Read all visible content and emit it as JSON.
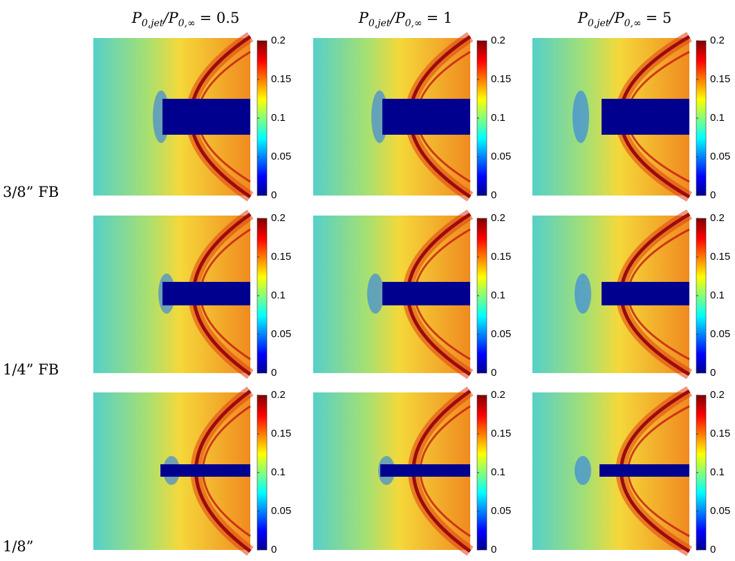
{
  "figure": {
    "columns": [
      {
        "p1": "P",
        "s1": "0,jet",
        "slash": "/",
        "p2": "P",
        "s2": "0,∞",
        "eq": "= 0.5"
      },
      {
        "p1": "P",
        "s1": "0,jet",
        "slash": "/",
        "p2": "P",
        "s2": "0,∞",
        "eq": "= 1"
      },
      {
        "p1": "P",
        "s1": "0,jet",
        "slash": "/",
        "p2": "P",
        "s2": "0,∞",
        "eq": "= 5"
      }
    ],
    "rows": [
      "3/8” FB",
      "1/4” FB",
      "1/8”"
    ],
    "colorbar": {
      "lim": [
        0,
        0.2
      ],
      "ticks": [
        0,
        0.05,
        0.1,
        0.15,
        0.2
      ]
    }
  }
}
